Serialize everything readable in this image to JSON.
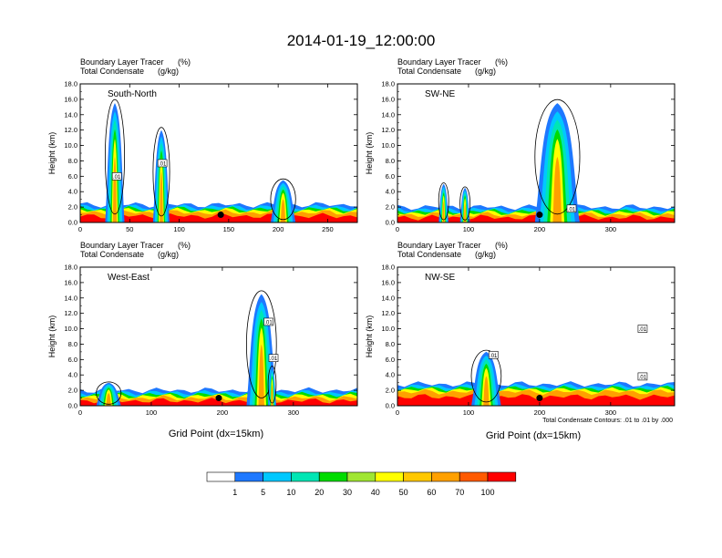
{
  "title": "2014-01-19_12:00:00",
  "tracer_label": "Boundary Layer Tracer",
  "tracer_unit": "(%)",
  "condensate_label": "Total Condensate",
  "condensate_unit": "(g/kg)",
  "y_axis_label": "Height (km)",
  "x_axis_label": "Grid Point (dx=15km)",
  "contour_note": "Total Condensate Contours: .01 to .01 by .000",
  "contour_label": ".01",
  "colors": [
    "#ffffff",
    "#1e78ff",
    "#00c8ff",
    "#00e6b4",
    "#00dc00",
    "#a0e632",
    "#ffff00",
    "#ffc800",
    "#ffa000",
    "#ff5a00",
    "#ff0000"
  ],
  "chart_data": [
    {
      "type": "heatmap",
      "panel_label": "South-North",
      "ylim": [
        0,
        18
      ],
      "y_ticks": [
        "0.0",
        "2.0",
        "4.0",
        "6.0",
        "8.0",
        "10.0",
        "12.0",
        "14.0",
        "16.0",
        "18.0"
      ],
      "xlim": [
        0,
        280
      ],
      "x_ticks": [
        {
          "v": 0,
          "label": "0"
        },
        {
          "v": 50,
          "label": "50"
        },
        {
          "v": 100,
          "label": "100"
        },
        {
          "v": 150,
          "label": "150"
        },
        {
          "v": 200,
          "label": "200"
        },
        {
          "v": 250,
          "label": "250"
        }
      ],
      "surface_height": 1.3,
      "marker": {
        "x": 142,
        "y": 1.0
      },
      "plumes": [
        {
          "x": 35,
          "width": 14,
          "top": 15.5
        },
        {
          "x": 82,
          "width": 12,
          "top": 12.0
        },
        {
          "x": 205,
          "width": 18,
          "top": 5.5
        }
      ],
      "contour_labels": [
        {
          "x": 37,
          "y": 6.0
        },
        {
          "x": 83,
          "y": 7.7
        }
      ]
    },
    {
      "type": "heatmap",
      "panel_label": "SW-NE",
      "ylim": [
        0,
        18
      ],
      "y_ticks": [
        "0.0",
        "2.0",
        "4.0",
        "6.0",
        "8.0",
        "10.0",
        "12.0",
        "14.0",
        "16.0",
        "18.0"
      ],
      "xlim": [
        0,
        390
      ],
      "x_ticks": [
        {
          "v": 0,
          "label": "0"
        },
        {
          "v": 100,
          "label": "100"
        },
        {
          "v": 200,
          "label": "200"
        },
        {
          "v": 300,
          "label": "300"
        }
      ],
      "surface_height": 1.0,
      "marker": {
        "x": 200,
        "y": 1.0
      },
      "plumes": [
        {
          "x": 65,
          "width": 10,
          "top": 5.0
        },
        {
          "x": 95,
          "width": 10,
          "top": 4.5
        },
        {
          "x": 225,
          "width": 45,
          "top": 15.5
        }
      ],
      "contour_labels": [
        {
          "x": 245,
          "y": 1.8
        }
      ]
    },
    {
      "type": "heatmap",
      "panel_label": "West-East",
      "ylim": [
        0,
        18
      ],
      "y_ticks": [
        "0.0",
        "2.0",
        "4.0",
        "6.0",
        "8.0",
        "10.0",
        "12.0",
        "14.0",
        "16.0",
        "18.0"
      ],
      "xlim": [
        0,
        390
      ],
      "x_ticks": [
        {
          "v": 0,
          "label": "0"
        },
        {
          "v": 100,
          "label": "100"
        },
        {
          "v": 200,
          "label": "200"
        },
        {
          "v": 300,
          "label": "300"
        }
      ],
      "surface_height": 1.0,
      "marker": {
        "x": 195,
        "y": 1.0
      },
      "plumes": [
        {
          "x": 40,
          "width": 25,
          "top": 3.0
        },
        {
          "x": 255,
          "width": 30,
          "top": 14.5
        },
        {
          "x": 270,
          "width": 8,
          "top": 5.0
        }
      ],
      "contour_labels": [
        {
          "x": 265,
          "y": 10.9
        },
        {
          "x": 272,
          "y": 6.2
        }
      ]
    },
    {
      "type": "heatmap",
      "panel_label": "NW-SE",
      "ylim": [
        0,
        18
      ],
      "y_ticks": [
        "0.0",
        "2.0",
        "4.0",
        "6.0",
        "8.0",
        "10.0",
        "12.0",
        "14.0",
        "16.0",
        "18.0"
      ],
      "xlim": [
        0,
        390
      ],
      "x_ticks": [
        {
          "v": 0,
          "label": "0"
        },
        {
          "v": 100,
          "label": "100"
        },
        {
          "v": 200,
          "label": "200"
        },
        {
          "v": 300,
          "label": "300"
        }
      ],
      "surface_height": 1.8,
      "marker": {
        "x": 200,
        "y": 1.0
      },
      "plumes": [
        {
          "x": 125,
          "width": 30,
          "top": 7.0
        }
      ],
      "contour_labels": [
        {
          "x": 135,
          "y": 6.6
        },
        {
          "x": 345,
          "y": 10.0
        },
        {
          "x": 345,
          "y": 3.8
        }
      ]
    }
  ],
  "colorbar_labels": [
    "1",
    "5",
    "10",
    "20",
    "30",
    "40",
    "50",
    "60",
    "70",
    "100"
  ]
}
